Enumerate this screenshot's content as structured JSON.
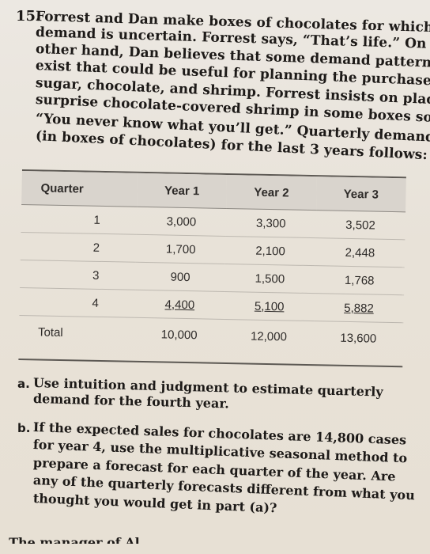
{
  "problem": {
    "number": "15.",
    "lines": [
      "Forrest and Dan make boxes of chocolates for which the",
      "demand is uncertain. Forrest says, “That’s life.” On the",
      "other hand, Dan believes that some demand patterns",
      "exist that could be useful for planning the purchase of",
      "sugar, chocolate, and shrimp. Forrest insists on placing a",
      "surprise chocolate-covered shrimp in some boxes so that",
      "“You never know what you’ll get.” Quarterly demand",
      "(in boxes of chocolates) for the last 3 years follows:"
    ]
  },
  "table": {
    "headers": [
      "Quarter",
      "Year 1",
      "Year 2",
      "Year 3"
    ],
    "rows": [
      [
        "1",
        "3,000",
        "3,300",
        "3,502"
      ],
      [
        "2",
        "1,700",
        "2,100",
        "2,448"
      ],
      [
        "3",
        "900",
        "1,500",
        "1,768"
      ],
      [
        "4",
        "4,400",
        "5,100",
        "5,882"
      ]
    ],
    "total": [
      "Total",
      "10,000",
      "12,000",
      "13,600"
    ]
  },
  "parts": {
    "a": {
      "label": "a.",
      "lines": [
        "Use intuition and judgment to estimate quarterly",
        "demand for the fourth year."
      ]
    },
    "b": {
      "label": "b.",
      "lines": [
        "If the expected sales for chocolates are 14,800 cases",
        "for year 4, use the multiplicative seasonal method to",
        "prepare a forecast for each quarter of the year. Are",
        "any of the quarterly forecasts different from what you",
        "thought you would get in part (a)?"
      ]
    }
  },
  "next_problem_fragment": ". The manager of Al..."
}
